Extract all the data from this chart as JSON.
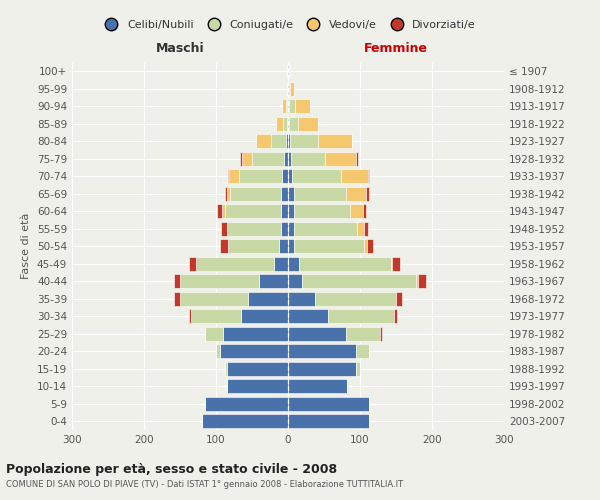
{
  "age_groups": [
    "0-4",
    "5-9",
    "10-14",
    "15-19",
    "20-24",
    "25-29",
    "30-34",
    "35-39",
    "40-44",
    "45-49",
    "50-54",
    "55-59",
    "60-64",
    "65-69",
    "70-74",
    "75-79",
    "80-84",
    "85-89",
    "90-94",
    "95-99",
    "100+"
  ],
  "birth_years": [
    "2003-2007",
    "1998-2002",
    "1993-1997",
    "1988-1992",
    "1983-1987",
    "1978-1982",
    "1973-1977",
    "1968-1972",
    "1963-1967",
    "1958-1962",
    "1953-1957",
    "1948-1952",
    "1943-1947",
    "1938-1942",
    "1933-1937",
    "1928-1932",
    "1923-1927",
    "1918-1922",
    "1913-1917",
    "1908-1912",
    "≤ 1907"
  ],
  "colors": {
    "celibi": "#4a72aa",
    "coniugati": "#c8d9a5",
    "vedovi": "#f5c870",
    "divorziati": "#c0392b"
  },
  "maschi": {
    "celibi": [
      120,
      115,
      85,
      85,
      95,
      90,
      65,
      55,
      40,
      20,
      12,
      10,
      10,
      10,
      8,
      5,
      3,
      2,
      1,
      1,
      1
    ],
    "coniugati": [
      0,
      0,
      0,
      2,
      5,
      25,
      70,
      95,
      110,
      108,
      72,
      75,
      78,
      70,
      60,
      45,
      20,
      5,
      2,
      0,
      0
    ],
    "vedovi": [
      0,
      0,
      0,
      0,
      0,
      0,
      0,
      0,
      0,
      0,
      0,
      0,
      3,
      5,
      14,
      14,
      22,
      10,
      5,
      0,
      0
    ],
    "divorziati": [
      0,
      0,
      0,
      0,
      0,
      0,
      2,
      8,
      8,
      10,
      10,
      8,
      8,
      2,
      2,
      2,
      0,
      0,
      0,
      0,
      0
    ]
  },
  "femmine": {
    "celibi": [
      112,
      112,
      82,
      95,
      95,
      80,
      55,
      38,
      20,
      15,
      8,
      8,
      8,
      8,
      5,
      4,
      3,
      2,
      2,
      1,
      1
    ],
    "coniugati": [
      0,
      0,
      0,
      5,
      18,
      48,
      92,
      112,
      158,
      128,
      98,
      88,
      78,
      72,
      68,
      48,
      38,
      12,
      8,
      2,
      0
    ],
    "vedovi": [
      0,
      0,
      0,
      0,
      0,
      0,
      0,
      0,
      2,
      2,
      4,
      10,
      18,
      28,
      38,
      43,
      48,
      28,
      20,
      5,
      2
    ],
    "divorziati": [
      0,
      0,
      0,
      0,
      0,
      2,
      5,
      8,
      12,
      10,
      8,
      5,
      5,
      5,
      2,
      2,
      0,
      0,
      0,
      0,
      0
    ]
  },
  "title_main": "Popolazione per età, sesso e stato civile - 2008",
  "title_sub": "COMUNE DI SAN POLO DI PIAVE (TV) - Dati ISTAT 1° gennaio 2008 - Elaborazione TUTTITALIA.IT",
  "label_maschi": "Maschi",
  "label_femmine": "Femmine",
  "ylabel_left": "Fasce di età",
  "xlim": 300,
  "legend_labels": [
    "Celibi/Nubili",
    "Coniugati/e",
    "Vedovi/e",
    "Divorziati/e"
  ],
  "bg_color": "#f0f0eb",
  "grid_color": "white"
}
